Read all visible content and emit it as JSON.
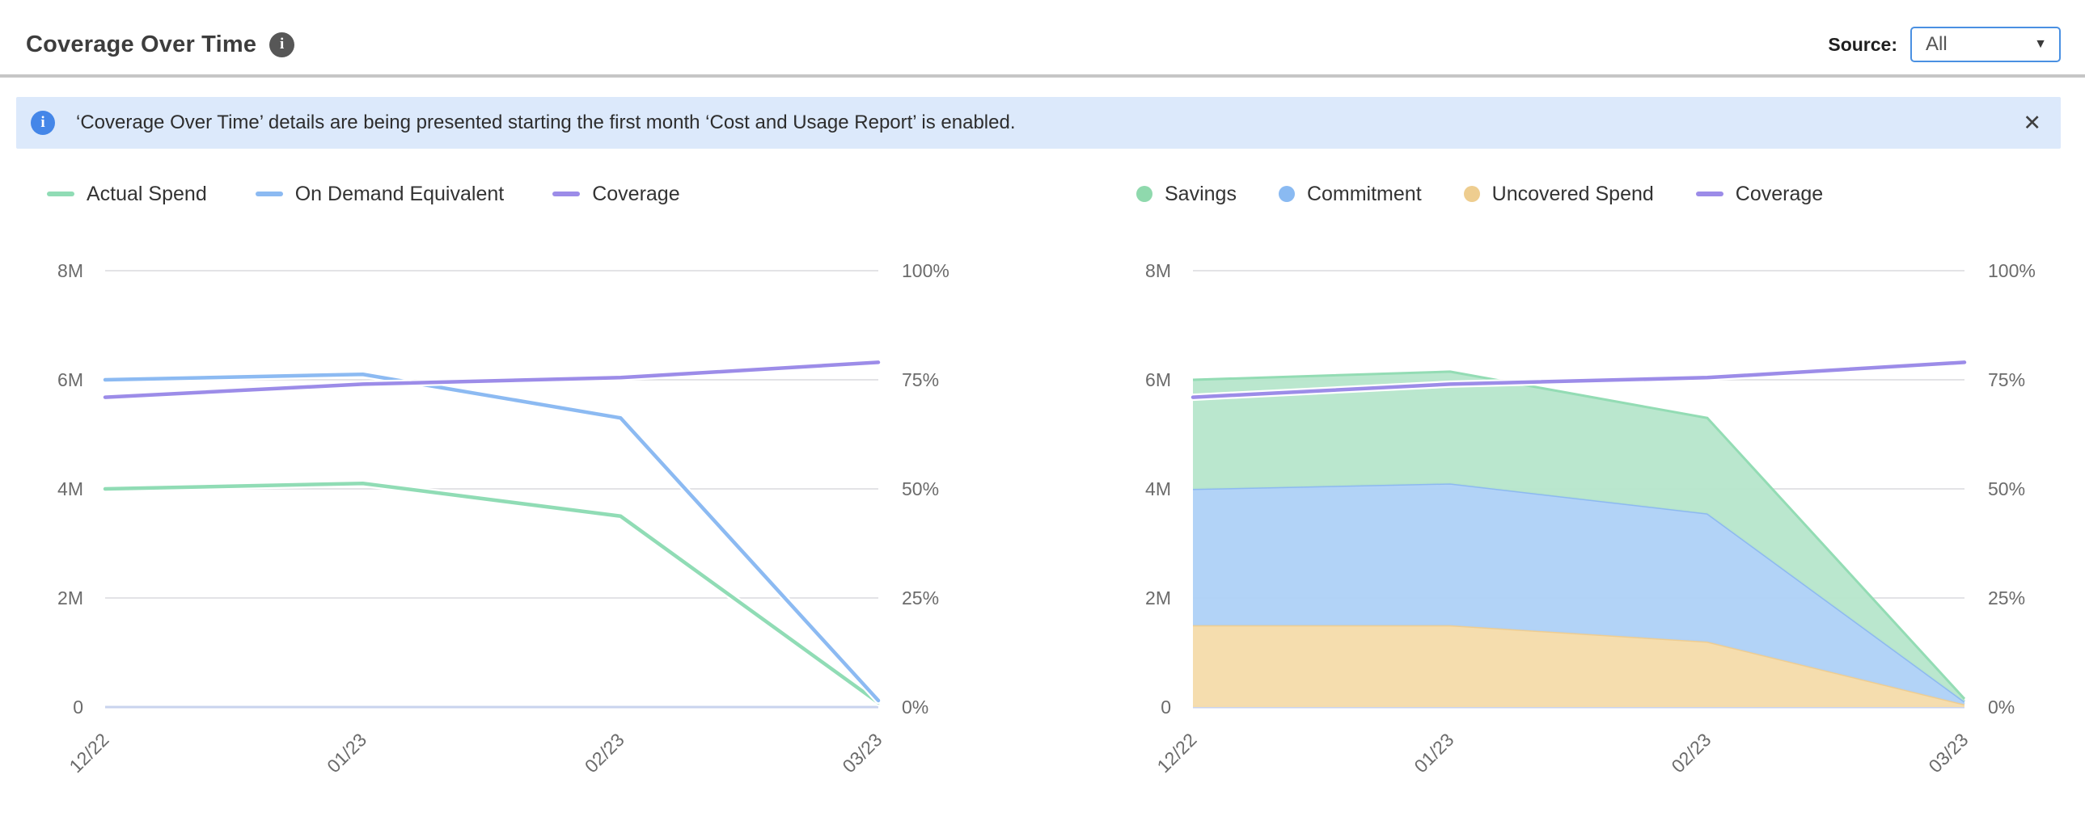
{
  "header": {
    "title": "Coverage Over Time",
    "source_label": "Source:",
    "source_value": "All"
  },
  "icons": {
    "info": "i",
    "chevron_down": "▼",
    "close": "✕"
  },
  "banner": {
    "text": "‘Coverage Over Time’ details are being presented starting the first month ‘Cost and Usage Report’ is enabled."
  },
  "colors": {
    "accent_blue": "#4a90e2",
    "banner_bg": "#dce9fb",
    "banner_icon": "#4486e8",
    "grid": "#e3e3e6",
    "axis_line": "#c9d3ee",
    "green_line": "#90dcb5",
    "blue_line": "#8cbaf2",
    "purple_line": "#9c8ce8",
    "orange_line": "#eecd92"
  },
  "chart_data": [
    {
      "type": "line",
      "title": "",
      "categories": [
        "12/22",
        "01/23",
        "02/23",
        "03/23"
      ],
      "left_axis": {
        "ticks": [
          "0",
          "2M",
          "4M",
          "6M",
          "8M"
        ],
        "min": 0,
        "max": 8,
        "unit": "M (spend)"
      },
      "right_axis": {
        "ticks": [
          "0%",
          "25%",
          "50%",
          "75%",
          "100%"
        ],
        "min": 0,
        "max": 100,
        "unit": "% coverage"
      },
      "grid": true,
      "legend_position": "top-left",
      "legend": [
        {
          "label": "Actual Spend",
          "marker": "dash",
          "color": "#90dcb5"
        },
        {
          "label": "On Demand Equivalent",
          "marker": "dash",
          "color": "#8cbaf2"
        },
        {
          "label": "Coverage",
          "marker": "dash",
          "color": "#9c8ce8"
        }
      ],
      "series": [
        {
          "name": "Actual Spend",
          "type": "line",
          "axis": "left",
          "color": "#90dcb5",
          "values": [
            4.0,
            4.1,
            3.5,
            0.08
          ]
        },
        {
          "name": "On Demand Equivalent",
          "type": "line",
          "axis": "left",
          "color": "#8cbaf2",
          "values": [
            6.0,
            6.1,
            5.3,
            0.12
          ]
        },
        {
          "name": "Coverage",
          "type": "line",
          "axis": "right",
          "color": "#9c8ce8",
          "values": [
            71,
            74,
            75.5,
            79
          ]
        }
      ]
    },
    {
      "type": "area",
      "title": "",
      "stacked": true,
      "categories": [
        "12/22",
        "01/23",
        "02/23",
        "03/23"
      ],
      "left_axis": {
        "ticks": [
          "0",
          "2M",
          "4M",
          "6M",
          "8M"
        ],
        "min": 0,
        "max": 8,
        "unit": "M (spend)"
      },
      "right_axis": {
        "ticks": [
          "0%",
          "25%",
          "50%",
          "75%",
          "100%"
        ],
        "min": 0,
        "max": 100,
        "unit": "% coverage"
      },
      "grid": true,
      "legend_position": "top-left",
      "legend": [
        {
          "label": "Savings",
          "marker": "circle",
          "color": "#8fd9ad"
        },
        {
          "label": "Commitment",
          "marker": "circle",
          "color": "#8abaf2"
        },
        {
          "label": "Uncovered Spend",
          "marker": "circle",
          "color": "#eecd8f"
        },
        {
          "label": "Coverage",
          "marker": "dash",
          "color": "#9c8ce8"
        }
      ],
      "series": [
        {
          "name": "Uncovered Spend",
          "type": "area",
          "axis": "left",
          "color": "#eecd92",
          "fill": "#f5dcab",
          "values": [
            1.5,
            1.5,
            1.2,
            0.05
          ]
        },
        {
          "name": "Commitment",
          "type": "area",
          "axis": "left",
          "color": "#8db9f0",
          "fill": "#afd1f7",
          "values": [
            2.5,
            2.6,
            2.35,
            0.05
          ]
        },
        {
          "name": "Savings",
          "type": "area",
          "axis": "left",
          "color": "#93dcb4",
          "fill": "#b7e6cc",
          "values": [
            2.0,
            2.05,
            1.75,
            0.05
          ]
        },
        {
          "name": "Coverage",
          "type": "line",
          "axis": "right",
          "color": "#9c8ce8",
          "halo": "#ffffff",
          "values": [
            71,
            74,
            75.5,
            79
          ]
        }
      ]
    }
  ]
}
